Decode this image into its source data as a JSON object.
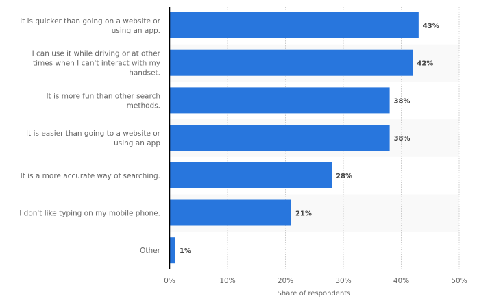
{
  "chart_data": {
    "type": "bar",
    "orientation": "horizontal",
    "categories": [
      [
        "It is quicker than going on a website or",
        "using an app."
      ],
      [
        "I can use it while driving or at other",
        "times when I can't interact with my",
        "handset."
      ],
      [
        "It is more fun than other search",
        "methods."
      ],
      [
        "It is easier than going to a website or",
        "using an app"
      ],
      [
        "It is a more accurate way of searching."
      ],
      [
        "I don't like typing on my mobile phone."
      ],
      [
        "Other"
      ]
    ],
    "values": [
      43,
      42,
      38,
      38,
      28,
      21,
      1
    ],
    "value_labels": [
      "43%",
      "42%",
      "38%",
      "38%",
      "28%",
      "21%",
      "1%"
    ],
    "xlabel": "Share of respondents",
    "xlim": [
      0,
      50
    ],
    "xticks": [
      0,
      10,
      20,
      30,
      40,
      50
    ],
    "xtick_labels": [
      "0%",
      "10%",
      "20%",
      "30%",
      "40%",
      "50%"
    ],
    "grid": true,
    "bar_color": "#2876dd",
    "band_color": "#f9f9f9"
  }
}
